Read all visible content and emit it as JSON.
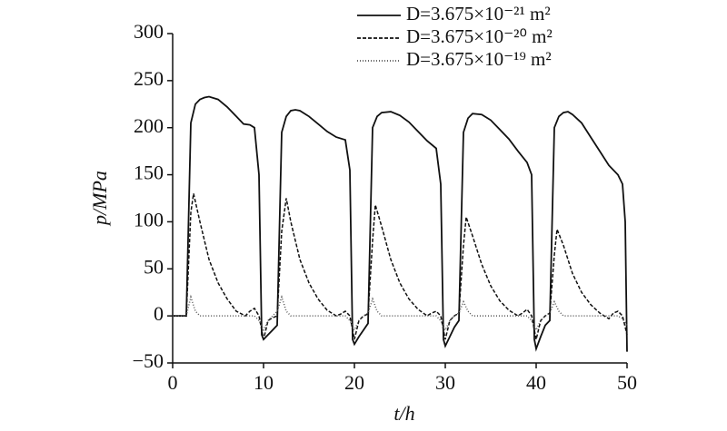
{
  "chart_data": {
    "type": "line",
    "xlabel": "t/h",
    "ylabel": "p/MPa",
    "xlim": [
      0,
      50
    ],
    "xticks": [
      0,
      10,
      20,
      30,
      40,
      50
    ],
    "ylim": [
      -50,
      300
    ],
    "yticks": [
      {
        "value": -50,
        "label": "−50"
      },
      0,
      50,
      100,
      150,
      200,
      250,
      300
    ],
    "legend": "upper right",
    "grid": false,
    "series": [
      {
        "name": "D=3.675×10⁻²¹ m²",
        "color": "#111111",
        "dash": "solid",
        "x": [
          0,
          1.5,
          2,
          2.5,
          3,
          3.5,
          4,
          5,
          6,
          7,
          7.8,
          8.5,
          9,
          9.5,
          9.8,
          10,
          10.5,
          11,
          11.5,
          12,
          12.5,
          13,
          13.5,
          14,
          15,
          16,
          17,
          18,
          19,
          19.5,
          19.8,
          20,
          20.5,
          21,
          21.5,
          22,
          22.5,
          23,
          24,
          25,
          26,
          27,
          28,
          29,
          29.5,
          29.8,
          30,
          30.5,
          31,
          31.5,
          32,
          32.5,
          33,
          34,
          35,
          36,
          37,
          38,
          39,
          39.5,
          39.8,
          40,
          40.5,
          41,
          41.5,
          42,
          42.5,
          43,
          43.5,
          44,
          45,
          46,
          47,
          48,
          49,
          49.5,
          49.8,
          50
        ],
        "values": [
          0,
          0,
          205,
          225,
          230,
          232,
          233,
          230,
          222,
          212,
          204,
          203,
          200,
          150,
          -20,
          -25,
          -20,
          -15,
          -10,
          195,
          212,
          218,
          219,
          218,
          212,
          204,
          196,
          190,
          187,
          155,
          -25,
          -30,
          -22,
          -15,
          -8,
          200,
          212,
          216,
          217,
          213,
          206,
          196,
          186,
          178,
          140,
          -25,
          -32,
          -22,
          -12,
          -5,
          195,
          210,
          215,
          214,
          208,
          198,
          188,
          175,
          163,
          150,
          -25,
          -35,
          -22,
          -10,
          -5,
          200,
          212,
          216,
          217,
          214,
          205,
          190,
          175,
          160,
          150,
          140,
          100,
          -38
        ]
      },
      {
        "name": "D=3.675×10⁻²⁰ m²",
        "color": "#111111",
        "dash": "dashed",
        "x": [
          0,
          1.5,
          2,
          2.3,
          3,
          4,
          5,
          6,
          7,
          8,
          8.5,
          9,
          9.5,
          10,
          10.5,
          11,
          11.5,
          12,
          12.5,
          13,
          14,
          15,
          16,
          17,
          18,
          18.5,
          19,
          19.5,
          20,
          20.5,
          21,
          21.5,
          22,
          22.3,
          23,
          24,
          25,
          26,
          27,
          28,
          28.5,
          29,
          29.5,
          30,
          30.5,
          31,
          31.5,
          32,
          32.3,
          33,
          34,
          35,
          36,
          37,
          38,
          38.5,
          39,
          39.5,
          40,
          40.5,
          41,
          41.5,
          42,
          42.3,
          43,
          44,
          45,
          46,
          47,
          48,
          48.5,
          49,
          49.5,
          50
        ],
        "values": [
          0,
          0,
          110,
          130,
          100,
          60,
          35,
          18,
          5,
          0,
          5,
          8,
          0,
          -25,
          -5,
          -2,
          0,
          90,
          125,
          100,
          60,
          35,
          18,
          6,
          0,
          2,
          5,
          0,
          -25,
          -5,
          0,
          2,
          80,
          118,
          95,
          60,
          35,
          18,
          7,
          0,
          3,
          5,
          0,
          -25,
          -5,
          0,
          3,
          75,
          105,
          85,
          55,
          32,
          16,
          6,
          0,
          3,
          7,
          0,
          -25,
          -5,
          0,
          3,
          65,
          92,
          75,
          45,
          25,
          12,
          3,
          -3,
          3,
          5,
          0,
          -20
        ]
      },
      {
        "name": "D=3.675×10⁻¹⁹ m²",
        "color": "#555555",
        "dash": "dotted",
        "x": [
          0,
          1.5,
          2,
          2.5,
          3,
          9,
          9.5,
          10,
          10.5,
          11,
          11.5,
          12,
          12.5,
          13,
          19,
          19.5,
          20,
          20.5,
          21,
          21.5,
          22,
          22.5,
          23,
          29,
          29.5,
          30,
          30.5,
          31,
          31.5,
          32,
          32.5,
          33,
          39,
          39.5,
          40,
          40.5,
          41,
          41.5,
          42,
          42.5,
          43,
          49,
          49.5,
          50
        ],
        "values": [
          0,
          0,
          20,
          5,
          0,
          0,
          -5,
          -15,
          -5,
          0,
          5,
          20,
          5,
          0,
          0,
          -5,
          -15,
          -5,
          0,
          3,
          18,
          5,
          0,
          0,
          -5,
          -15,
          -5,
          0,
          3,
          15,
          5,
          0,
          0,
          -5,
          -15,
          -5,
          0,
          3,
          15,
          5,
          0,
          0,
          -3,
          -10
        ]
      }
    ]
  }
}
